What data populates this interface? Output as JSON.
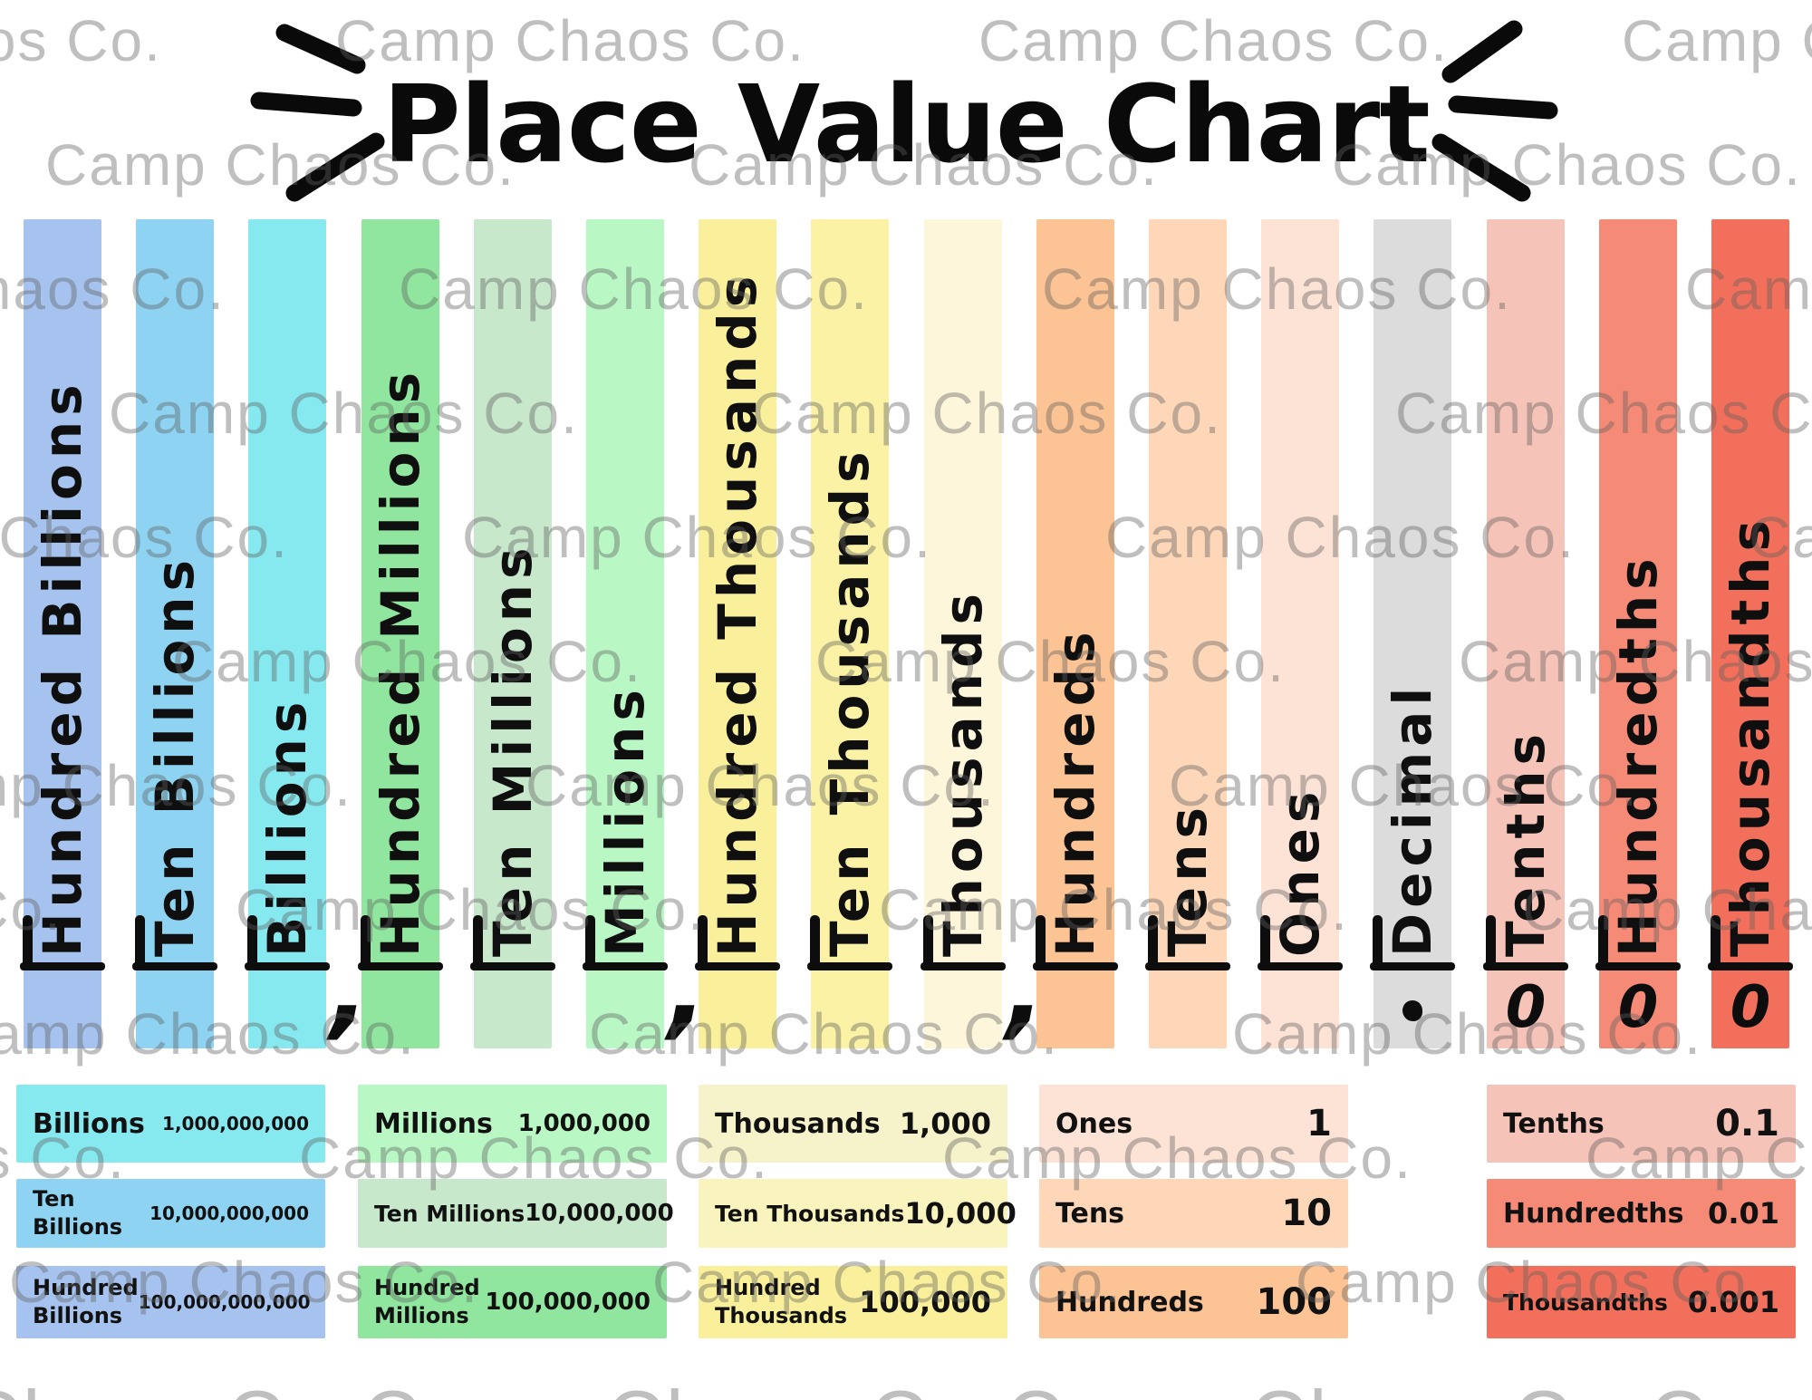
{
  "title": "Place Value Chart",
  "watermark": {
    "text": "Camp Chaos Co."
  },
  "glyphs": {
    "comma": ",",
    "zero": "0"
  },
  "columns": [
    {
      "label": "Hundred Billions",
      "color": "#a5c3ee",
      "below": ""
    },
    {
      "label": "Ten Billions",
      "color": "#8ed3f2",
      "below": ""
    },
    {
      "label": "Billions",
      "color": "#87e9f0",
      "below": "comma"
    },
    {
      "label": "Hundred Millions",
      "color": "#90e69e",
      "below": ""
    },
    {
      "label": "Ten Millions",
      "color": "#c8e8cc",
      "below": ""
    },
    {
      "label": "Millions",
      "color": "#b9f8c5",
      "below": "comma"
    },
    {
      "label": "Hundred Thousands",
      "color": "#faf09b",
      "below": ""
    },
    {
      "label": "Ten Thousands",
      "color": "#fbf2a6",
      "below": ""
    },
    {
      "label": "Thousands",
      "color": "#fdf6da",
      "below": "comma"
    },
    {
      "label": "Hundreds",
      "color": "#fcc394",
      "below": ""
    },
    {
      "label": "Tens",
      "color": "#fdd7b8",
      "below": ""
    },
    {
      "label": "Ones",
      "color": "#fde3d6",
      "below": ""
    },
    {
      "label": "Decimal",
      "color": "#dcdcdc",
      "below": "dot"
    },
    {
      "label": "Tenths",
      "color": "#f6c3b8",
      "below": "zero"
    },
    {
      "label": "Hundredths",
      "color": "#f58a77",
      "below": "zero"
    },
    {
      "label": "Thousandths",
      "color": "#f2705b",
      "below": "zero"
    }
  ],
  "reference_groups": [
    {
      "name": "billions",
      "boxes": [
        {
          "label": "Billions",
          "value": "1,000,000,000",
          "color": "#87e9f0",
          "wrap": false
        },
        {
          "label": "Ten Billions",
          "value": "10,000,000,000",
          "color": "#8ed3f2",
          "wrap": true
        },
        {
          "label": "Hundred Billions",
          "value": "100,000,000,000",
          "color": "#a5c3ee",
          "wrap": true
        }
      ]
    },
    {
      "name": "millions",
      "boxes": [
        {
          "label": "Millions",
          "value": "1,000,000",
          "color": "#b9f8c5",
          "wrap": false
        },
        {
          "label": "Ten Millions",
          "value": "10,000,000",
          "color": "#c8e8cc",
          "wrap": false
        },
        {
          "label": "Hundred Millions",
          "value": "100,000,000",
          "color": "#90e69e",
          "wrap": true
        }
      ]
    },
    {
      "name": "thousands",
      "boxes": [
        {
          "label": "Thousands",
          "value": "1,000",
          "color": "#f6f2c9",
          "wrap": false
        },
        {
          "label": "Ten Thousands",
          "value": "10,000",
          "color": "#f9f3bd",
          "wrap": false
        },
        {
          "label": "Hundred Thousands",
          "value": "100,000",
          "color": "#faf09b",
          "wrap": true
        }
      ]
    },
    {
      "name": "ones",
      "boxes": [
        {
          "label": "Ones",
          "value": "1",
          "color": "#fde3d6",
          "wrap": false
        },
        {
          "label": "Tens",
          "value": "10",
          "color": "#fdd7b8",
          "wrap": false
        },
        {
          "label": "Hundreds",
          "value": "100",
          "color": "#fcc394",
          "wrap": false
        }
      ]
    },
    {
      "name": "decimals",
      "boxes": [
        {
          "label": "Tenths",
          "value": "0.1",
          "color": "#f6c3b8",
          "wrap": false
        },
        {
          "label": "Hundredths",
          "value": "0.01",
          "color": "#f58a77",
          "wrap": false
        },
        {
          "label": "Thousandths",
          "value": "0.001",
          "color": "#f2705b",
          "wrap": false
        }
      ]
    }
  ]
}
